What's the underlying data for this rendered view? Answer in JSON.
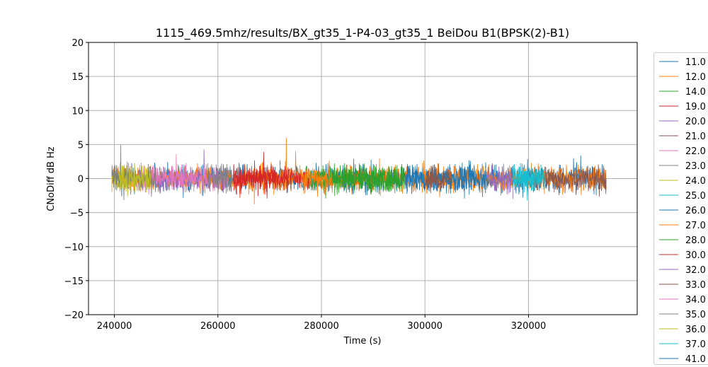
{
  "chart_data": {
    "type": "line",
    "title": "1115_469.5mhz/results/BX_gt35_1-P4-03_gt35_1 BeiDou B1(BPSK(2)-B1)",
    "xlabel": "Time (s)",
    "ylabel": "CNoDiff dB Hz",
    "xlim": [
      235000,
      341000
    ],
    "ylim": [
      -20,
      20
    ],
    "xticks": [
      240000,
      260000,
      280000,
      300000,
      320000
    ],
    "xtick_labels": [
      "240000",
      "260000",
      "280000",
      "300000",
      "320000"
    ],
    "yticks": [
      -20,
      -15,
      -10,
      -5,
      0,
      5,
      10,
      15,
      20
    ],
    "ytick_labels": [
      "−20",
      "−15",
      "−10",
      "−5",
      "0",
      "5",
      "10",
      "15",
      "20"
    ],
    "grid": true,
    "legend_position": "right-outside",
    "series": [
      {
        "name": "11.0",
        "color": "#1f77b4",
        "segments": [
          [
            239500,
            335000
          ]
        ]
      },
      {
        "name": "12.0",
        "color": "#ff7f0e",
        "segments": [
          [
            239500,
            335000
          ]
        ]
      },
      {
        "name": "14.0",
        "color": "#2ca02c",
        "segments": [
          [
            276500,
            296000
          ]
        ]
      },
      {
        "name": "19.0",
        "color": "#d62728",
        "segments": [
          [
            263000,
            278000
          ]
        ]
      },
      {
        "name": "20.0",
        "color": "#9467bd",
        "segments": [
          [
            248000,
            262000
          ]
        ]
      },
      {
        "name": "21.0",
        "color": "#8c564b",
        "segments": [
          [
            321000,
            335000
          ]
        ]
      },
      {
        "name": "22.0",
        "color": "#e377c2",
        "segments": [
          [
            252000,
            262000
          ]
        ]
      },
      {
        "name": "23.0",
        "color": "#7f7f7f",
        "segments": [
          [
            258000,
            264000
          ]
        ]
      },
      {
        "name": "24.0",
        "color": "#bcbd22",
        "segments": [
          [
            239500,
            244000
          ]
        ]
      },
      {
        "name": "25.0",
        "color": "#17becf",
        "segments": [
          [
            317000,
            323000
          ]
        ]
      },
      {
        "name": "26.0",
        "color": "#1f77b4",
        "segments": [
          [
            296000,
            312000
          ]
        ]
      },
      {
        "name": "27.0",
        "color": "#ff7f0e",
        "segments": [
          [
            276000,
            282000
          ]
        ]
      },
      {
        "name": "28.0",
        "color": "#2ca02c",
        "segments": [
          [
            282000,
            296000
          ]
        ]
      },
      {
        "name": "30.0",
        "color": "#d62728",
        "segments": [
          [
            263000,
            271000
          ]
        ]
      },
      {
        "name": "32.0",
        "color": "#9467bd",
        "segments": [
          [
            312000,
            317000
          ]
        ]
      },
      {
        "name": "33.0",
        "color": "#8c564b",
        "segments": [
          [
            300000,
            305000
          ]
        ]
      },
      {
        "name": "34.0",
        "color": "#e377c2",
        "segments": [
          [
            244000,
            252000
          ]
        ]
      },
      {
        "name": "35.0",
        "color": "#7f7f7f",
        "segments": [
          [
            239500,
            248000
          ]
        ]
      },
      {
        "name": "36.0",
        "color": "#bcbd22",
        "segments": [
          [
            241000,
            247000
          ]
        ]
      },
      {
        "name": "37.0",
        "color": "#17becf",
        "segments": [
          [
            317000,
            323000
          ]
        ]
      },
      {
        "name": "41.0",
        "color": "#1f77b4",
        "segments": []
      }
    ]
  }
}
